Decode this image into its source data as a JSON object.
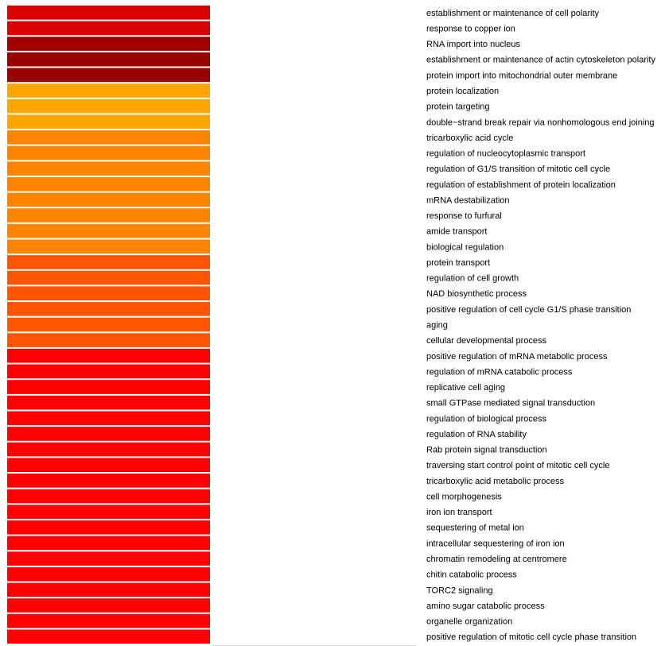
{
  "chart_data": {
    "type": "heatmap",
    "title": "",
    "xlabel": "",
    "ylabel": "",
    "rows": [
      {
        "label": "establishment or maintenance of cell polarity",
        "color": "#DD0000"
      },
      {
        "label": "response to copper ion",
        "color": "#DD0000"
      },
      {
        "label": "RNA import into nucleus",
        "color": "#A10000"
      },
      {
        "label": "establishment or maintenance of actin cytoskeleton polarity",
        "color": "#990000"
      },
      {
        "label": "protein import into mitochondrial outer membrane",
        "color": "#990000"
      },
      {
        "label": "protein localization",
        "color": "#FFA500"
      },
      {
        "label": "protein targeting",
        "color": "#FFA500"
      },
      {
        "label": "double−strand break repair via nonhomologous end joining",
        "color": "#FFA500"
      },
      {
        "label": "tricarboxylic acid cycle",
        "color": "#FF8500"
      },
      {
        "label": "regulation of nucleocytoplasmic transport",
        "color": "#FF8500"
      },
      {
        "label": "regulation of G1/S transition of mitotic cell cycle",
        "color": "#FF8500"
      },
      {
        "label": "regulation of establishment of protein localization",
        "color": "#FF8500"
      },
      {
        "label": "mRNA destabilization",
        "color": "#FF8500"
      },
      {
        "label": "response to furfural",
        "color": "#FF8500"
      },
      {
        "label": "amide transport",
        "color": "#FF8500"
      },
      {
        "label": "biological regulation",
        "color": "#FF8500"
      },
      {
        "label": "protein transport",
        "color": "#FF5500"
      },
      {
        "label": "regulation of cell growth",
        "color": "#FF5500"
      },
      {
        "label": "NAD biosynthetic process",
        "color": "#FF5500"
      },
      {
        "label": "positive regulation of cell cycle G1/S phase transition",
        "color": "#FF5500"
      },
      {
        "label": "aging",
        "color": "#FF5500"
      },
      {
        "label": "cellular developmental process",
        "color": "#FF5500"
      },
      {
        "label": "positive regulation of mRNA metabolic process",
        "color": "#FF0000"
      },
      {
        "label": "regulation of mRNA catabolic process",
        "color": "#FF0000"
      },
      {
        "label": "replicative cell aging",
        "color": "#FF0000"
      },
      {
        "label": "small GTPase mediated signal transduction",
        "color": "#FF0000"
      },
      {
        "label": "regulation of biological process",
        "color": "#FF0000"
      },
      {
        "label": "regulation of RNA stability",
        "color": "#FF0000"
      },
      {
        "label": "Rab protein signal transduction",
        "color": "#FF0000"
      },
      {
        "label": "traversing start control point of mitotic cell cycle",
        "color": "#FF0000"
      },
      {
        "label": "tricarboxylic acid metabolic process",
        "color": "#FF0000"
      },
      {
        "label": "cell morphogenesis",
        "color": "#FF0000"
      },
      {
        "label": "iron ion transport",
        "color": "#FF0000"
      },
      {
        "label": "sequestering of metal ion",
        "color": "#FF0000"
      },
      {
        "label": "intracellular sequestering of iron ion",
        "color": "#FF0000"
      },
      {
        "label": "chromatin remodeling at centromere",
        "color": "#FF0000"
      },
      {
        "label": "chitin catabolic process",
        "color": "#FF0000"
      },
      {
        "label": "TORC2 signaling",
        "color": "#FF0000"
      },
      {
        "label": "amino sugar catabolic process",
        "color": "#FF0000"
      },
      {
        "label": "organelle organization",
        "color": "#FF0000"
      },
      {
        "label": "positive regulation of mitotic cell cycle phase transition",
        "color": "#FF0000"
      }
    ]
  }
}
